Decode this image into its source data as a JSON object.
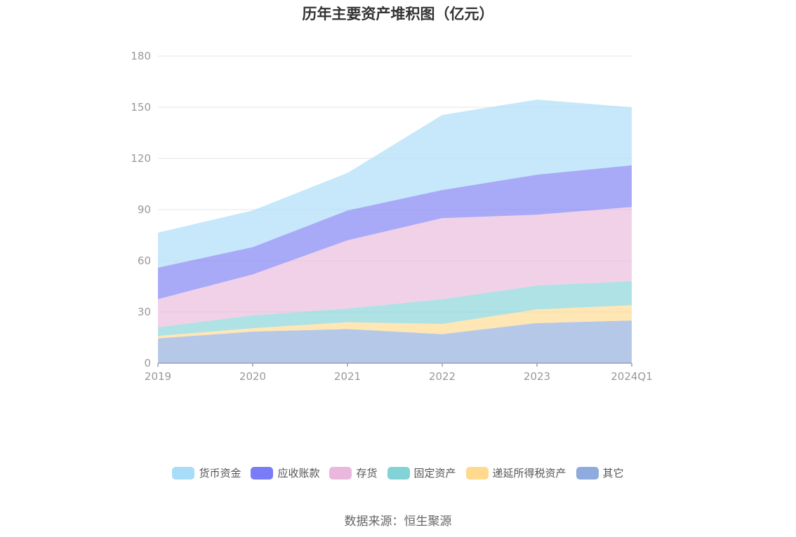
{
  "chart_data": {
    "type": "area",
    "stacked": true,
    "title": "历年主要资产堆积图（亿元）",
    "categories": [
      "2019",
      "2020",
      "2021",
      "2022",
      "2023",
      "2024Q1"
    ],
    "ylim": [
      0,
      180
    ],
    "yticks": [
      "0",
      "30",
      "60",
      "90",
      "120",
      "150",
      "180"
    ],
    "grid": true,
    "legend_position": "bottom",
    "series": [
      {
        "name": "其它",
        "color": "#8faadc",
        "values": [
          14.5,
          18.5,
          20.0,
          17.0,
          23.5,
          25.0
        ]
      },
      {
        "name": "递延所得税资产",
        "color": "#ffd98e",
        "values": [
          1.5,
          2.0,
          4.0,
          6.0,
          8.0,
          9.0
        ]
      },
      {
        "name": "固定资产",
        "color": "#83d3d6",
        "values": [
          5.0,
          7.5,
          8.0,
          14.5,
          14.0,
          14.0
        ]
      },
      {
        "name": "存货",
        "color": "#eab8dc",
        "values": [
          16.5,
          24.0,
          40.0,
          47.5,
          41.5,
          43.5
        ]
      },
      {
        "name": "应收账款",
        "color": "#7a7cf5",
        "values": [
          18.5,
          16.0,
          17.5,
          16.5,
          23.5,
          24.5
        ]
      },
      {
        "name": "货币资金",
        "color": "#a8dcf8",
        "values": [
          20.5,
          21.5,
          22.0,
          44.0,
          44.0,
          34.0
        ]
      }
    ]
  },
  "legend": [
    {
      "label": "货币资金",
      "color": "#a8dcf8"
    },
    {
      "label": "应收账款",
      "color": "#7a7cf5"
    },
    {
      "label": "存货",
      "color": "#eab8dc"
    },
    {
      "label": "固定资产",
      "color": "#83d3d6"
    },
    {
      "label": "递延所得税资产",
      "color": "#ffd98e"
    },
    {
      "label": "其它",
      "color": "#8faadc"
    }
  ],
  "source": "数据来源：恒生聚源"
}
